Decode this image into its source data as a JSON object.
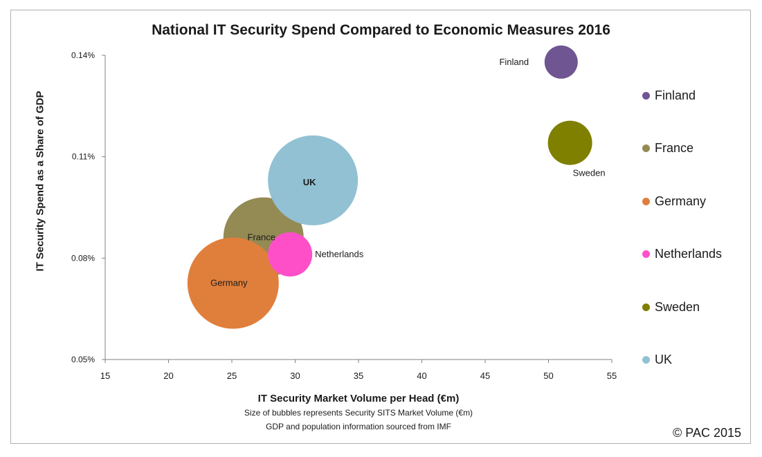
{
  "chart_data": {
    "type": "bubble",
    "title": "National IT Security Spend Compared to Economic Measures 2016",
    "xlabel": "IT Security Market Volume per Head (€m)",
    "ylabel": "IT Security Spend as a Share of GDP",
    "notes": [
      "Size of bubbles represents Security SITS Market Volume (€m)",
      "GDP and population information sourced from IMF"
    ],
    "xlim": [
      15,
      55
    ],
    "ylim": [
      0.0005,
      0.0014
    ],
    "xticks": [
      "15",
      "20",
      "25",
      "30",
      "35",
      "40",
      "45",
      "50",
      "55"
    ],
    "yticks": [
      "0.05%",
      "0.08%",
      "0.11%",
      "0.14%"
    ],
    "ytick_values": [
      0.0005,
      0.0008,
      0.0011,
      0.0014
    ],
    "grid": false,
    "legend_position": "right",
    "series": [
      {
        "name": "Finland",
        "x": 51.0,
        "y": 0.00138,
        "size": 24,
        "color": "#6f5591",
        "label": "Finland"
      },
      {
        "name": "France",
        "x": 27.5,
        "y": 0.000861,
        "size": 58,
        "color": "#948a54",
        "label": "France"
      },
      {
        "name": "Germany",
        "x": 25.1,
        "y": 0.000726,
        "size": 66,
        "color": "#e07f3c",
        "label": "Germany"
      },
      {
        "name": "Netherlands",
        "x": 29.6,
        "y": 0.000811,
        "size": 32,
        "color": "#ff4fc8",
        "label": "Netherlands"
      },
      {
        "name": "Sweden",
        "x": 51.7,
        "y": 0.001141,
        "size": 32,
        "color": "#7f7f00",
        "label": "Sweden"
      },
      {
        "name": "UK",
        "x": 31.4,
        "y": 0.00103,
        "size": 65,
        "color": "#92c1d3",
        "label": "UK"
      }
    ]
  },
  "copyright": "© PAC 2015"
}
